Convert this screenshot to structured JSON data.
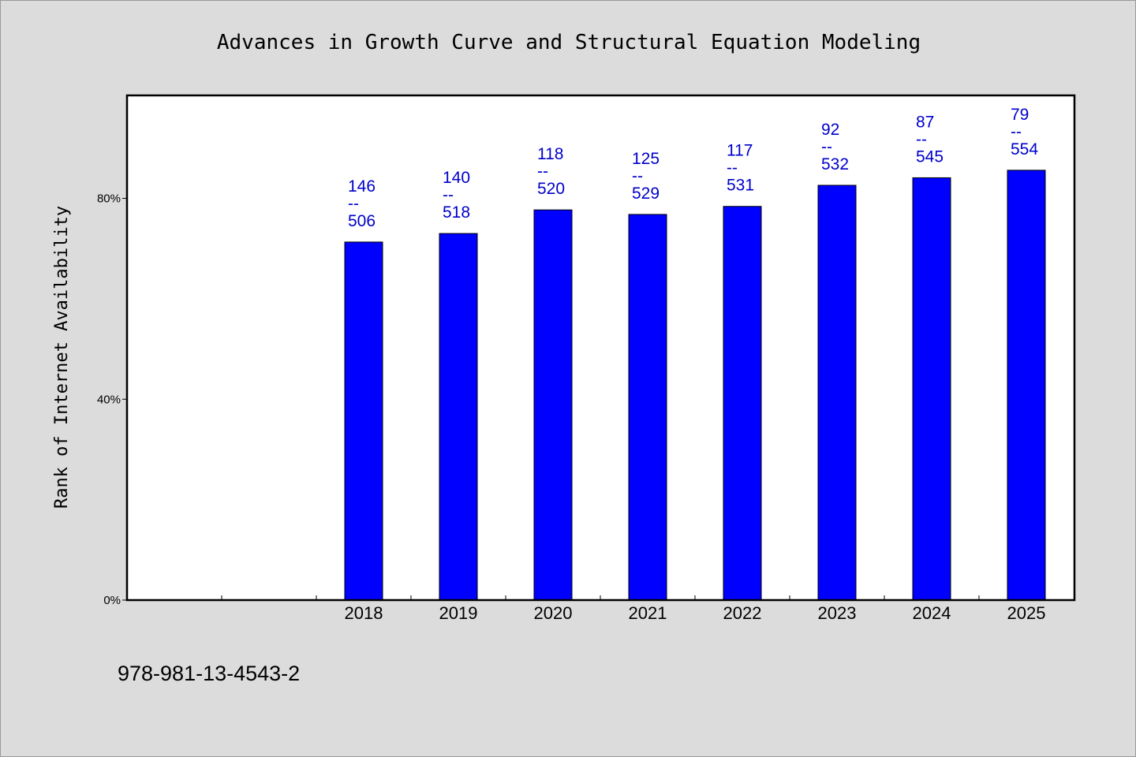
{
  "chart_data": {
    "type": "bar",
    "title": "Advances in Growth Curve and Structural Equation Modeling",
    "ylabel": "Rank of Internet Availability",
    "xlabel": "",
    "y_tick_labels": [
      "0%",
      "40%",
      "80%"
    ],
    "y_ticks": [
      0,
      40,
      80
    ],
    "ylim": [
      0,
      100.5
    ],
    "categories": [
      "2018",
      "2019",
      "2020",
      "2021",
      "2022",
      "2023",
      "2024",
      "2025"
    ],
    "category_slots_before_data": 2,
    "values": [
      71.3,
      73.0,
      77.7,
      76.8,
      78.4,
      82.6,
      84.1,
      85.6
    ],
    "bar_labels": [
      [
        "146",
        "--",
        "506"
      ],
      [
        "140",
        "--",
        "518"
      ],
      [
        "118",
        "--",
        "520"
      ],
      [
        "125",
        "--",
        "529"
      ],
      [
        "117",
        "--",
        "531"
      ],
      [
        "92",
        "--",
        "532"
      ],
      [
        "87",
        "--",
        "545"
      ],
      [
        "79",
        "--",
        "554"
      ]
    ],
    "grid": false,
    "legend": "none",
    "colors": {
      "bar": "#0000ff",
      "bar_label": "#0000cc",
      "background": "#dcdcdc",
      "plot_background": "#ffffff"
    }
  },
  "footer": {
    "isbn": "978-981-13-4543-2"
  }
}
